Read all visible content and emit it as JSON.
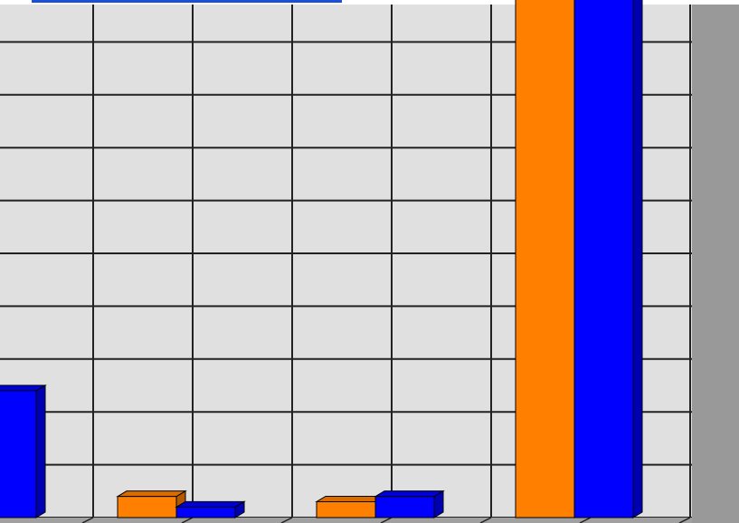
{
  "chart_data": {
    "type": "bar3d",
    "categories": [
      null,
      null,
      null,
      null
    ],
    "series": [
      {
        "color": "#ff7f00",
        "values": [
          null,
          0.4,
          0.3,
          12
        ]
      },
      {
        "color": "#0000ff",
        "values": [
          2.4,
          0.2,
          0.4,
          12
        ]
      }
    ],
    "ylim": [
      0,
      10
    ],
    "yticks": [
      0,
      1,
      2,
      3,
      4,
      5,
      6,
      7,
      8,
      9,
      10
    ],
    "grid": true
  }
}
